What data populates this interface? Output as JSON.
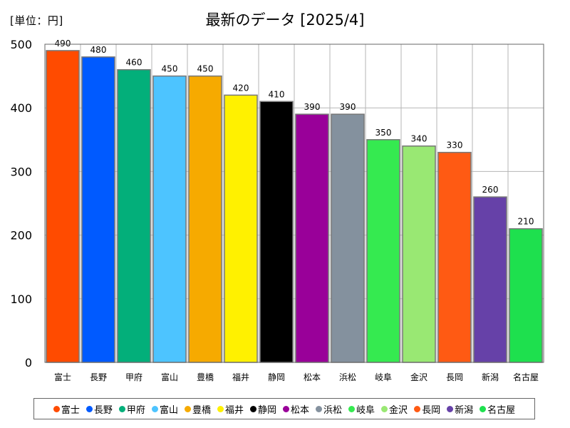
{
  "unit_label": "[単位：円]",
  "chart_data": {
    "type": "bar",
    "title": "最新のデータ [2025/4]",
    "xlabel": "",
    "ylabel": "",
    "ylim": [
      0,
      500
    ],
    "yticks": [
      0,
      100,
      200,
      300,
      400,
      500
    ],
    "grid": true,
    "legend_position": "bottom",
    "categories": [
      "富士",
      "長野",
      "甲府",
      "富山",
      "豊橋",
      "福井",
      "静岡",
      "松本",
      "浜松",
      "岐阜",
      "金沢",
      "長岡",
      "新潟",
      "名古屋"
    ],
    "values": [
      490,
      480,
      460,
      450,
      450,
      420,
      410,
      390,
      390,
      350,
      340,
      330,
      260,
      210
    ],
    "colors": [
      "#ff4b00",
      "#005aff",
      "#03af7a",
      "#4dc4ff",
      "#f6aa00",
      "#fff100",
      "#000000",
      "#990099",
      "#84919e",
      "#35ea50",
      "#99e873",
      "#ff5a13",
      "#6641a8",
      "#1ee04e"
    ]
  }
}
